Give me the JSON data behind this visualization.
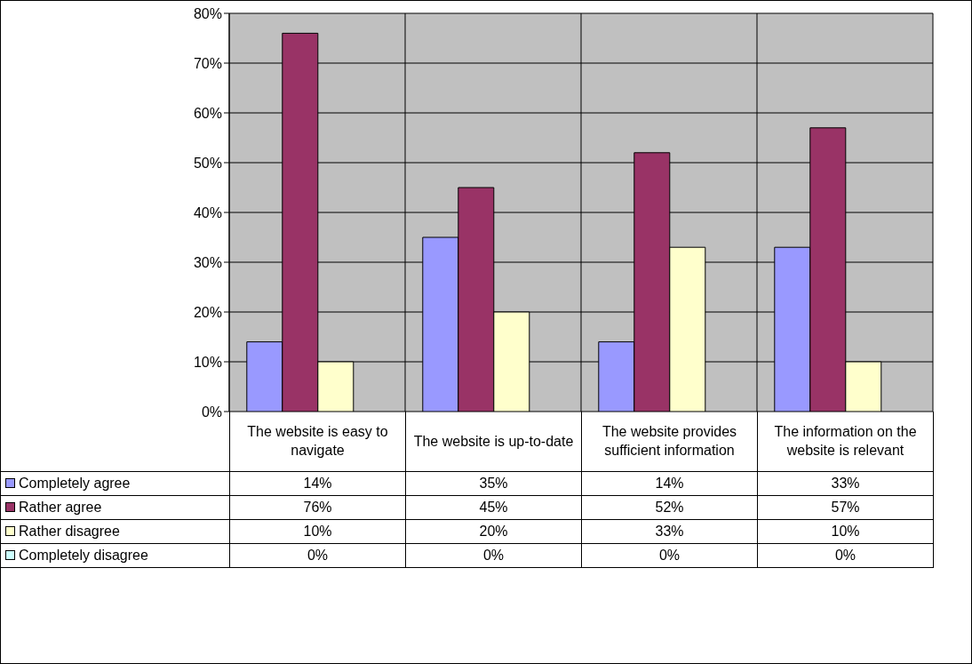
{
  "chart_data": {
    "type": "bar",
    "categories": [
      "The website is easy to navigate",
      "The website is up-to-date",
      "The website provides sufficient information",
      "The information on the website is relevant"
    ],
    "series": [
      {
        "name": "Completely agree",
        "color": "#9999ff",
        "values": [
          14,
          35,
          14,
          33
        ],
        "value_labels": [
          "14%",
          "35%",
          "14%",
          "33%"
        ]
      },
      {
        "name": "Rather agree",
        "color": "#993366",
        "values": [
          76,
          45,
          52,
          57
        ],
        "value_labels": [
          "76%",
          "45%",
          "52%",
          "57%"
        ]
      },
      {
        "name": "Rather disagree",
        "color": "#ffffcc",
        "values": [
          10,
          20,
          33,
          10
        ],
        "value_labels": [
          "10%",
          "20%",
          "33%",
          "10%"
        ]
      },
      {
        "name": "Completely disagree",
        "color": "#ccffff",
        "values": [
          0,
          0,
          0,
          0
        ],
        "value_labels": [
          "0%",
          "0%",
          "0%",
          "0%"
        ]
      }
    ],
    "ylim": [
      0,
      80
    ],
    "yticks": [
      {
        "value": 0,
        "label": "0%"
      },
      {
        "value": 10,
        "label": "10%"
      },
      {
        "value": 20,
        "label": "20%"
      },
      {
        "value": 30,
        "label": "30%"
      },
      {
        "value": 40,
        "label": "40%"
      },
      {
        "value": 50,
        "label": "50%"
      },
      {
        "value": 60,
        "label": "60%"
      },
      {
        "value": 70,
        "label": "70%"
      },
      {
        "value": 80,
        "label": "80%"
      }
    ],
    "grid": true,
    "legend": "bottom left"
  }
}
